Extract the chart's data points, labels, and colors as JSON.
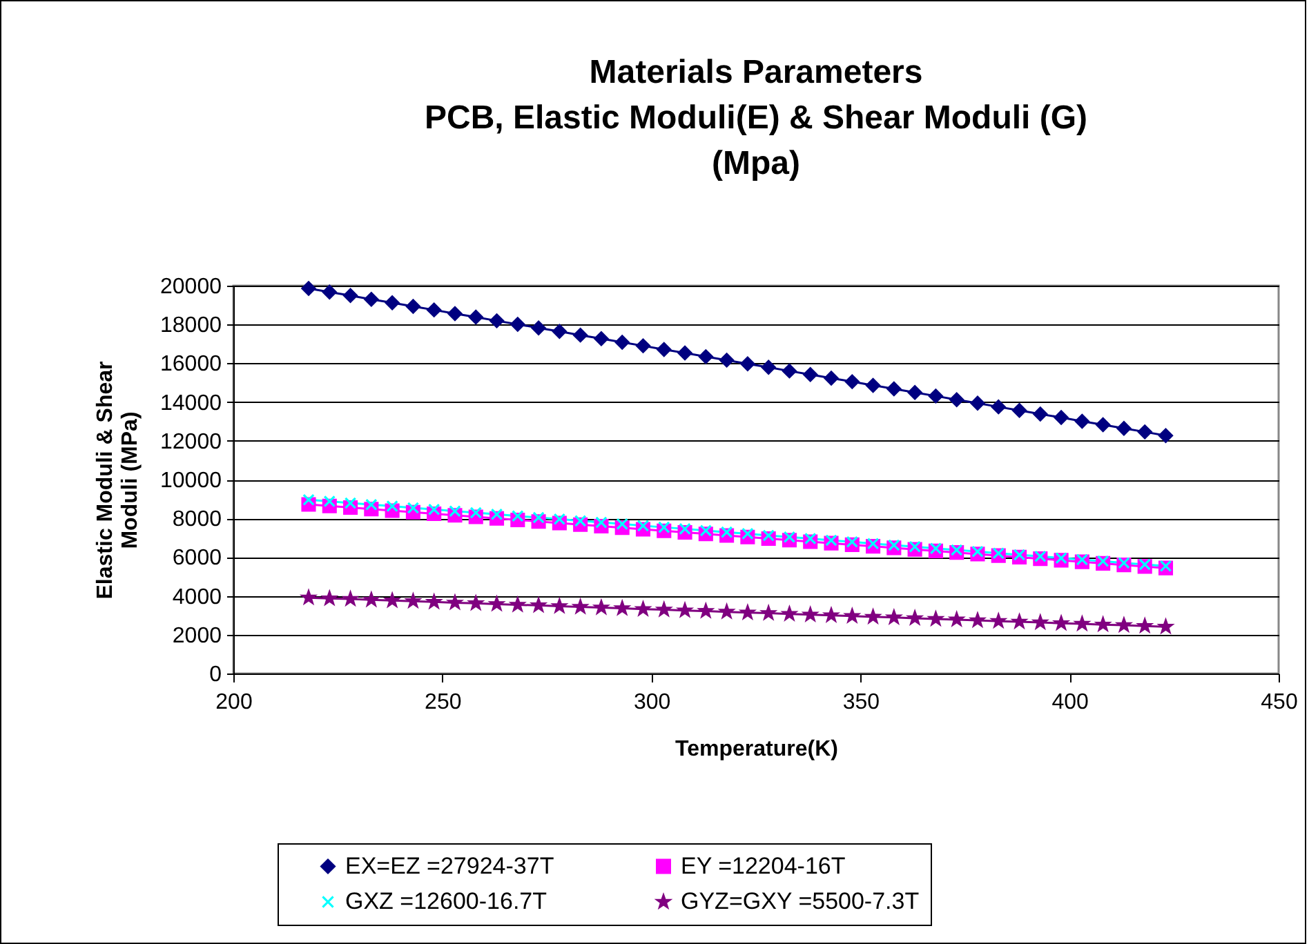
{
  "chart_data": {
    "type": "line",
    "title": "Materials Parameters\nPCB, Elastic Moduli(E) & Shear Moduli (G)\n(Mpa)",
    "xlabel": "Temperature(K)",
    "ylabel": "Elastic Moduli & Shear\nModuli (MPa)",
    "x": [
      218,
      223,
      228,
      233,
      238,
      243,
      248,
      253,
      258,
      263,
      268,
      273,
      278,
      283,
      288,
      293,
      298,
      303,
      308,
      313,
      318,
      323,
      328,
      333,
      338,
      343,
      348,
      353,
      358,
      363,
      368,
      373,
      378,
      383,
      388,
      393,
      398,
      403,
      408,
      413,
      418,
      423
    ],
    "series": [
      {
        "name": "EX=EZ =27924-37T",
        "color": "#000080",
        "marker": "diamond",
        "values": [
          19860,
          19670,
          19490,
          19300,
          19120,
          18930,
          18750,
          18560,
          18380,
          18190,
          18010,
          17820,
          17640,
          17450,
          17270,
          17080,
          16900,
          16710,
          16530,
          16340,
          16160,
          15970,
          15790,
          15600,
          15420,
          15230,
          15050,
          14860,
          14680,
          14490,
          14310,
          14120,
          13940,
          13750,
          13570,
          13380,
          13200,
          13010,
          12830,
          12640,
          12460,
          12270
        ]
      },
      {
        "name": "EY =12204-16T",
        "color": "#ff00ff",
        "marker": "square",
        "values": [
          8720,
          8640,
          8560,
          8480,
          8400,
          8320,
          8240,
          8160,
          8080,
          8000,
          7920,
          7840,
          7760,
          7680,
          7600,
          7520,
          7440,
          7360,
          7280,
          7200,
          7120,
          7040,
          6960,
          6880,
          6800,
          6720,
          6640,
          6560,
          6480,
          6400,
          6320,
          6240,
          6160,
          6080,
          6000,
          5920,
          5840,
          5760,
          5680,
          5600,
          5520,
          5440
        ]
      },
      {
        "name": "GXZ =12600-16.7T",
        "color": "#00ffff",
        "marker": "cross",
        "values": [
          8960,
          8880,
          8790,
          8710,
          8630,
          8540,
          8460,
          8370,
          8290,
          8210,
          8120,
          8040,
          7960,
          7870,
          7790,
          7710,
          7620,
          7540,
          7460,
          7370,
          7290,
          7210,
          7120,
          7040,
          6960,
          6870,
          6790,
          6700,
          6620,
          6540,
          6450,
          6370,
          6290,
          6200,
          6120,
          6040,
          5950,
          5870,
          5790,
          5700,
          5620,
          5540
        ]
      },
      {
        "name": "GYZ=GXY =5500-7.3T",
        "color": "#800080",
        "marker": "star",
        "values": [
          3910,
          3870,
          3840,
          3800,
          3760,
          3730,
          3690,
          3650,
          3620,
          3580,
          3540,
          3510,
          3470,
          3430,
          3400,
          3360,
          3320,
          3290,
          3250,
          3220,
          3180,
          3140,
          3110,
          3070,
          3030,
          3000,
          2960,
          2920,
          2890,
          2850,
          2810,
          2780,
          2740,
          2700,
          2670,
          2630,
          2590,
          2560,
          2520,
          2490,
          2450,
          2410
        ]
      }
    ],
    "xlim": [
      200,
      450
    ],
    "xticks": [
      200,
      250,
      300,
      350,
      400,
      450
    ],
    "ylim": [
      0,
      20000
    ],
    "yticks": [
      0,
      2000,
      4000,
      6000,
      8000,
      10000,
      12000,
      14000,
      16000,
      18000,
      20000
    ],
    "grid": "y",
    "legend": "bottom",
    "line_style": "solid"
  }
}
